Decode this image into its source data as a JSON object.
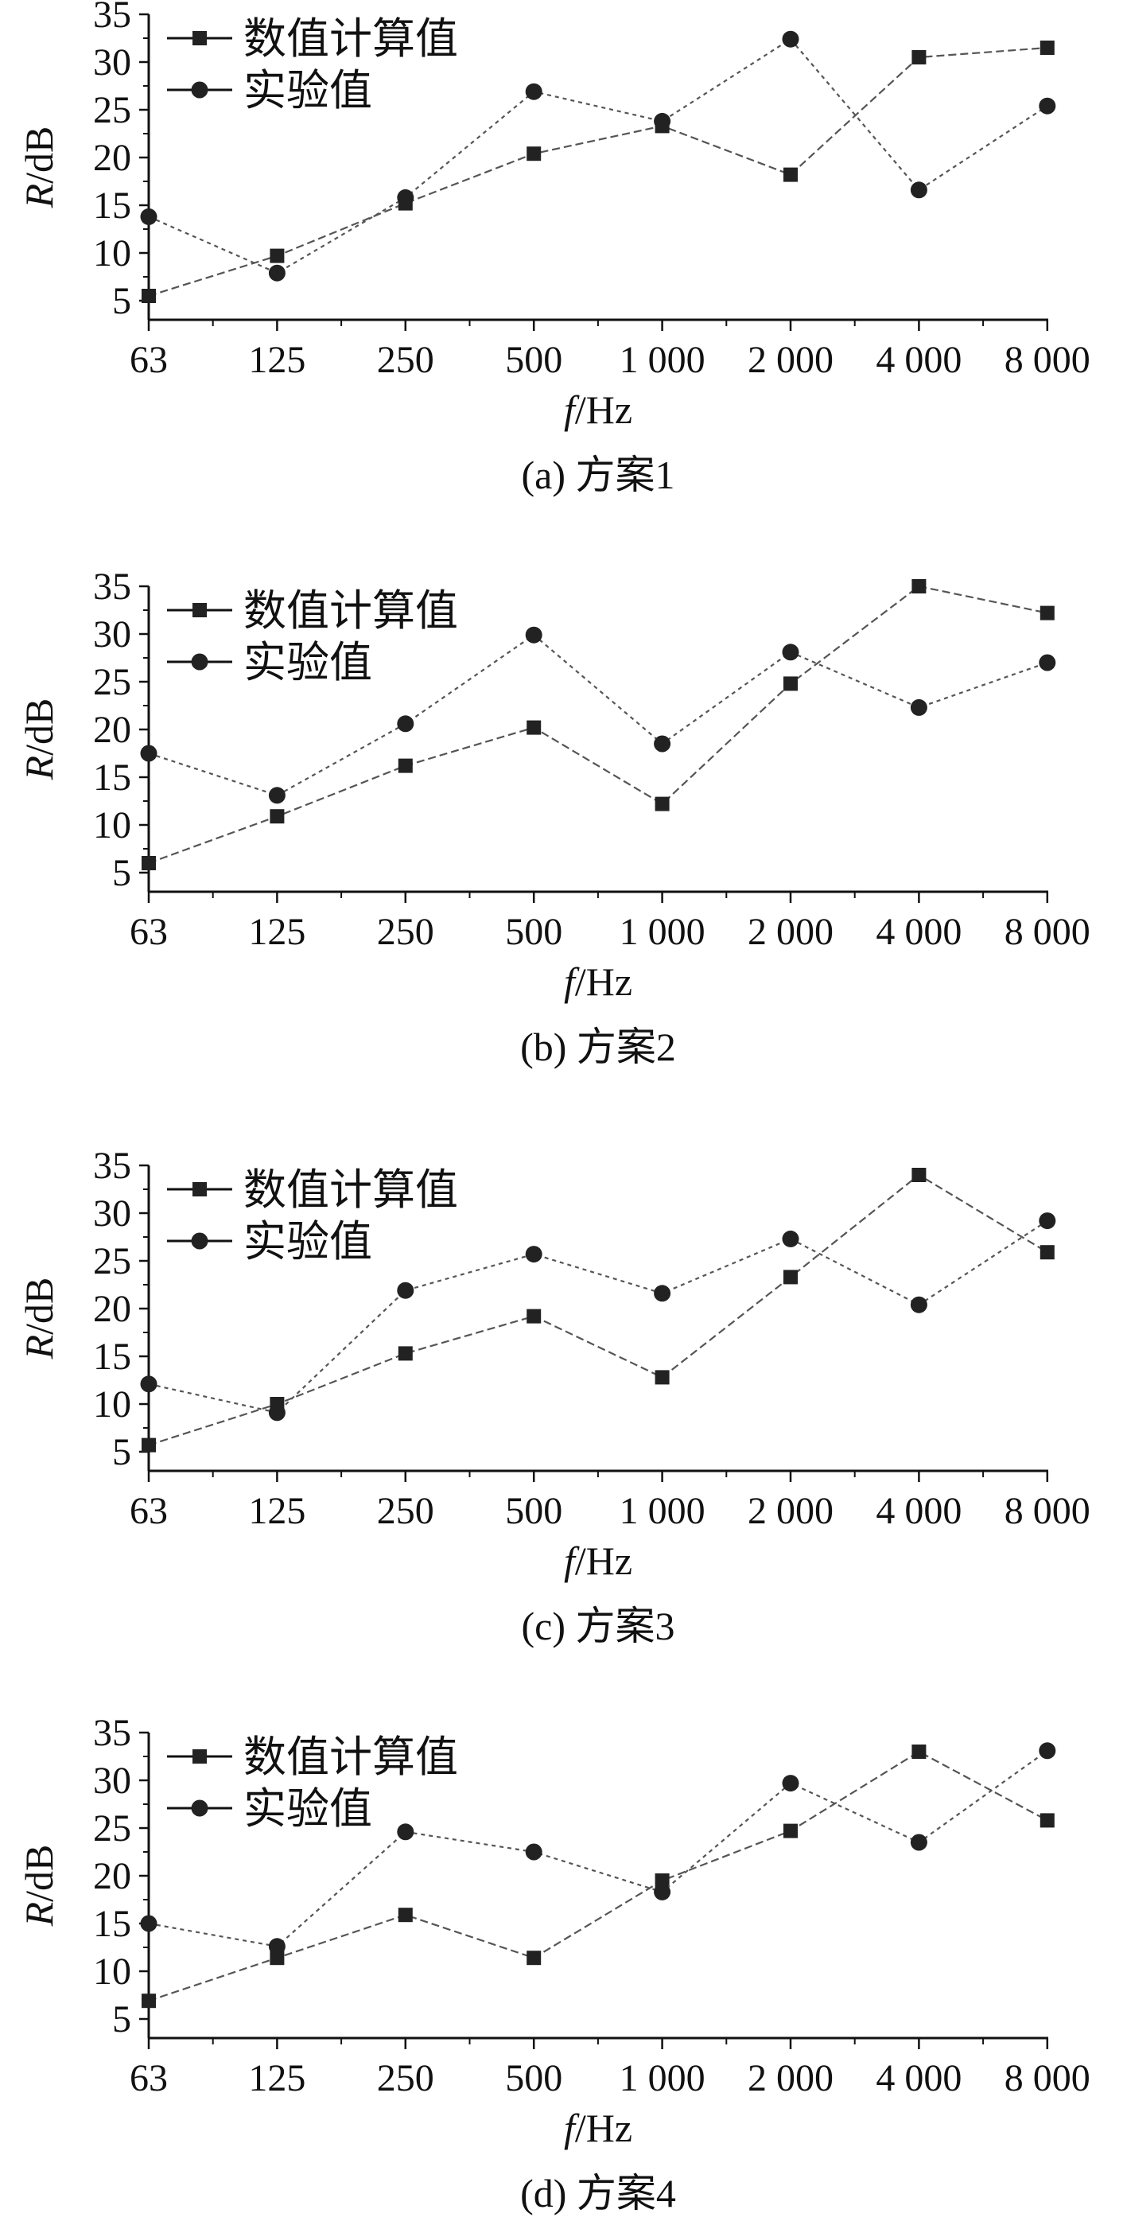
{
  "colors": {
    "axis": "#111111",
    "series_line": "#555555",
    "marker": "#222222",
    "background": "#ffffff"
  },
  "shared": {
    "x_ticks": [
      "63",
      "125",
      "250",
      "500",
      "1 000",
      "2 000",
      "4 000",
      "8 000"
    ],
    "y_ticks": [
      "5",
      "10",
      "15",
      "20",
      "25",
      "30",
      "35"
    ],
    "xlabel_italic": "f",
    "xlabel_unit": "/Hz",
    "ylabel_italic": "R",
    "ylabel_unit": "/dB",
    "legend": {
      "numerical": "数值计算值",
      "experimental": "实验值"
    }
  },
  "chart_data": [
    {
      "type": "line",
      "caption": "(a) 方案1",
      "categories": [
        63,
        125,
        250,
        500,
        1000,
        2000,
        4000,
        8000
      ],
      "x_scale": "log",
      "xlabel": "f/Hz",
      "ylabel": "R/dB",
      "ylim": [
        3,
        35
      ],
      "legend_position": "top-left",
      "series": [
        {
          "name": "数值计算值",
          "marker": "square",
          "values": [
            5.5,
            9.7,
            15.2,
            20.4,
            23.3,
            18.2,
            30.5,
            31.5
          ]
        },
        {
          "name": "实验值",
          "marker": "circle",
          "values": [
            13.8,
            7.9,
            15.8,
            26.9,
            23.8,
            32.4,
            16.6,
            25.4
          ]
        }
      ]
    },
    {
      "type": "line",
      "caption": "(b) 方案2",
      "categories": [
        63,
        125,
        250,
        500,
        1000,
        2000,
        4000,
        8000
      ],
      "x_scale": "log",
      "xlabel": "f/Hz",
      "ylabel": "R/dB",
      "ylim": [
        3,
        35
      ],
      "legend_position": "top-left",
      "series": [
        {
          "name": "数值计算值",
          "marker": "square",
          "values": [
            6.0,
            10.9,
            16.2,
            20.2,
            12.2,
            24.8,
            35.0,
            32.2
          ]
        },
        {
          "name": "实验值",
          "marker": "circle",
          "values": [
            17.5,
            13.1,
            20.6,
            29.9,
            18.5,
            28.1,
            22.3,
            27.0
          ]
        }
      ]
    },
    {
      "type": "line",
      "caption": "(c) 方案3",
      "categories": [
        63,
        125,
        250,
        500,
        1000,
        2000,
        4000,
        8000
      ],
      "x_scale": "log",
      "xlabel": "f/Hz",
      "ylabel": "R/dB",
      "ylim": [
        3,
        35
      ],
      "legend_position": "top-left",
      "series": [
        {
          "name": "数值计算值",
          "marker": "square",
          "values": [
            5.7,
            10.0,
            15.3,
            19.2,
            12.8,
            23.3,
            34.0,
            25.9
          ]
        },
        {
          "name": "实验值",
          "marker": "circle",
          "values": [
            12.1,
            9.1,
            21.9,
            25.7,
            21.6,
            27.3,
            20.4,
            29.2
          ]
        }
      ]
    },
    {
      "type": "line",
      "caption": "(d) 方案4",
      "categories": [
        63,
        125,
        250,
        500,
        1000,
        2000,
        4000,
        8000
      ],
      "x_scale": "log",
      "xlabel": "f/Hz",
      "ylabel": "R/dB",
      "ylim": [
        3,
        35
      ],
      "legend_position": "top-left",
      "series": [
        {
          "name": "数值计算值",
          "marker": "square",
          "values": [
            6.9,
            11.4,
            15.9,
            11.4,
            19.5,
            24.7,
            33.0,
            25.8
          ]
        },
        {
          "name": "实验值",
          "marker": "circle",
          "values": [
            15.0,
            12.6,
            24.6,
            22.5,
            18.3,
            29.7,
            23.5,
            33.1
          ]
        }
      ]
    }
  ]
}
